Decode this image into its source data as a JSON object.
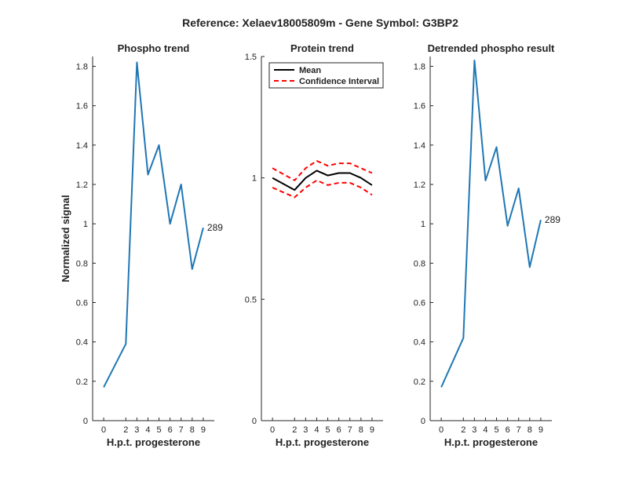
{
  "figure_title": "Reference:  Xelaev18005809m - Gene Symbol:  G3BP2",
  "chart_data": [
    {
      "type": "line",
      "title": "Phospho trend",
      "xlabel": "H.p.t. progesterone",
      "ylabel": "Normalized signal",
      "x": [
        0,
        2,
        3,
        4,
        5,
        6,
        7,
        8,
        9
      ],
      "xticks": [
        "0",
        "2",
        "3",
        "4",
        "5",
        "6",
        "7",
        "8",
        "9"
      ],
      "ylim": [
        0,
        1.85
      ],
      "yticks": [
        "0",
        "0.2",
        "0.4",
        "0.6",
        "0.8",
        "1",
        "1.2",
        "1.4",
        "1.6",
        "1.8"
      ],
      "series": [
        {
          "values": [
            0.17,
            0.39,
            1.82,
            1.25,
            1.4,
            1.0,
            1.2,
            0.77,
            0.98
          ],
          "color": "#1f77b4",
          "style": "solid"
        }
      ],
      "annotations": [
        {
          "text": "289",
          "x": 9,
          "y": 0.98
        }
      ],
      "grid": false
    },
    {
      "type": "line",
      "title": "Protein trend",
      "xlabel": "H.p.t. progesterone",
      "ylabel": "",
      "x": [
        0,
        2,
        3,
        4,
        5,
        6,
        7,
        8,
        9
      ],
      "xticks": [
        "0",
        "2",
        "3",
        "4",
        "5",
        "6",
        "7",
        "8",
        "9"
      ],
      "ylim": [
        0,
        1.5
      ],
      "yticks": [
        "0",
        "0.5",
        "1",
        "1.5"
      ],
      "series": [
        {
          "name": "Mean",
          "values": [
            1.0,
            0.95,
            1.0,
            1.03,
            1.01,
            1.02,
            1.02,
            1.0,
            0.97
          ],
          "color": "#000000",
          "style": "solid"
        },
        {
          "name": "Confidence Interval",
          "values": [
            1.04,
            0.99,
            1.04,
            1.07,
            1.05,
            1.06,
            1.06,
            1.04,
            1.02
          ],
          "color": "#ff0000",
          "style": "dashed"
        },
        {
          "values": [
            0.96,
            0.92,
            0.96,
            0.99,
            0.97,
            0.98,
            0.98,
            0.96,
            0.93
          ],
          "color": "#ff0000",
          "style": "dashed"
        }
      ],
      "legend": {
        "position": "top-left",
        "entries": [
          {
            "label": "Mean",
            "color": "#000000",
            "style": "solid"
          },
          {
            "label": "Confidence Interval",
            "color": "#ff0000",
            "style": "dashed"
          }
        ]
      },
      "grid": false
    },
    {
      "type": "line",
      "title": "Detrended phospho result",
      "xlabel": "H.p.t. progesterone",
      "ylabel": "",
      "x": [
        0,
        2,
        3,
        4,
        5,
        6,
        7,
        8,
        9
      ],
      "xticks": [
        "0",
        "2",
        "3",
        "4",
        "5",
        "6",
        "7",
        "8",
        "9"
      ],
      "ylim": [
        0,
        1.85
      ],
      "yticks": [
        "0",
        "0.2",
        "0.4",
        "0.6",
        "0.8",
        "1",
        "1.2",
        "1.4",
        "1.6",
        "1.8"
      ],
      "series": [
        {
          "values": [
            0.17,
            0.42,
            1.83,
            1.22,
            1.39,
            0.99,
            1.18,
            0.78,
            1.02
          ],
          "color": "#1f77b4",
          "style": "solid"
        }
      ],
      "annotations": [
        {
          "text": "289",
          "x": 9,
          "y": 1.02
        }
      ],
      "grid": false
    }
  ]
}
